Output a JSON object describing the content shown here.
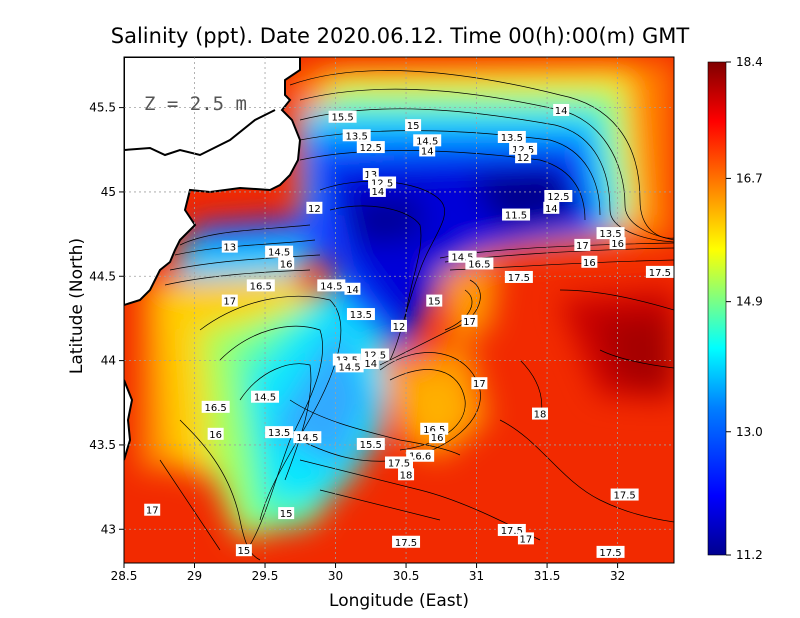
{
  "chart_data": {
    "type": "heatmap",
    "title": "Salinity (ppt). Date 2020.06.12. Time 00(h):00(m) GMT",
    "xlabel": "Longitude (East)",
    "ylabel": "Latitude (North)",
    "annotation": "Z = 2.5 m",
    "xlim": [
      28.5,
      32.4
    ],
    "ylim": [
      42.8,
      45.8
    ],
    "x_ticks": [
      "28.5",
      "29",
      "29.5",
      "30",
      "30.5",
      "31",
      "31.5",
      "32"
    ],
    "y_ticks": [
      "43",
      "43.5",
      "44",
      "44.5",
      "45",
      "45.5"
    ],
    "grid": true,
    "colorbar": {
      "range": [
        11.2,
        18.4
      ],
      "tick_labels": [
        "18.4",
        "16.7",
        "14.9",
        "13.0",
        "11.2"
      ],
      "colormap": [
        "#00008f",
        "#0000ff",
        "#0080ff",
        "#00ffff",
        "#80ff80",
        "#ffff00",
        "#ff8000",
        "#ff0000",
        "#800000"
      ]
    },
    "contour_labels": [
      {
        "text": "15.5",
        "lon": 30.05,
        "lat": 45.44
      },
      {
        "text": "15",
        "lon": 30.55,
        "lat": 45.39
      },
      {
        "text": "14",
        "lon": 31.6,
        "lat": 45.48
      },
      {
        "text": "13.5",
        "lon": 30.15,
        "lat": 45.33
      },
      {
        "text": "12.5",
        "lon": 30.25,
        "lat": 45.26
      },
      {
        "text": "14.5",
        "lon": 30.65,
        "lat": 45.3
      },
      {
        "text": "14",
        "lon": 30.65,
        "lat": 45.24
      },
      {
        "text": "13.5",
        "lon": 31.25,
        "lat": 45.32
      },
      {
        "text": "12.5",
        "lon": 31.33,
        "lat": 45.25
      },
      {
        "text": "12",
        "lon": 31.33,
        "lat": 45.2
      },
      {
        "text": "13",
        "lon": 30.25,
        "lat": 45.1
      },
      {
        "text": "12.5",
        "lon": 30.33,
        "lat": 45.05
      },
      {
        "text": "14",
        "lon": 30.3,
        "lat": 45.0
      },
      {
        "text": "12",
        "lon": 29.85,
        "lat": 44.9
      },
      {
        "text": "12.5",
        "lon": 31.58,
        "lat": 44.97
      },
      {
        "text": "14",
        "lon": 31.53,
        "lat": 44.9
      },
      {
        "text": "11.5",
        "lon": 31.28,
        "lat": 44.86
      },
      {
        "text": "13",
        "lon": 29.25,
        "lat": 44.67
      },
      {
        "text": "14.5",
        "lon": 29.6,
        "lat": 44.64
      },
      {
        "text": "16",
        "lon": 29.65,
        "lat": 44.57
      },
      {
        "text": "17",
        "lon": 31.75,
        "lat": 44.68
      },
      {
        "text": "13.5",
        "lon": 31.95,
        "lat": 44.75
      },
      {
        "text": "16",
        "lon": 32.0,
        "lat": 44.69
      },
      {
        "text": "14.5",
        "lon": 30.9,
        "lat": 44.61
      },
      {
        "text": "16.5",
        "lon": 31.02,
        "lat": 44.57
      },
      {
        "text": "16",
        "lon": 31.8,
        "lat": 44.58
      },
      {
        "text": "17.5",
        "lon": 32.3,
        "lat": 44.52
      },
      {
        "text": "17.5",
        "lon": 31.3,
        "lat": 44.49
      },
      {
        "text": "16.5",
        "lon": 29.47,
        "lat": 44.44
      },
      {
        "text": "14.5",
        "lon": 29.97,
        "lat": 44.44
      },
      {
        "text": "14",
        "lon": 30.12,
        "lat": 44.42
      },
      {
        "text": "17",
        "lon": 29.25,
        "lat": 44.35
      },
      {
        "text": "15",
        "lon": 30.7,
        "lat": 44.35
      },
      {
        "text": "13.5",
        "lon": 30.18,
        "lat": 44.27
      },
      {
        "text": "17",
        "lon": 30.95,
        "lat": 44.23
      },
      {
        "text": "12",
        "lon": 30.45,
        "lat": 44.2
      },
      {
        "text": "12.5",
        "lon": 30.28,
        "lat": 44.03
      },
      {
        "text": "13.5",
        "lon": 30.08,
        "lat": 44.0
      },
      {
        "text": "14",
        "lon": 30.25,
        "lat": 43.98
      },
      {
        "text": "14.5",
        "lon": 30.1,
        "lat": 43.96
      },
      {
        "text": "17",
        "lon": 31.02,
        "lat": 43.86
      },
      {
        "text": "16.5",
        "lon": 29.15,
        "lat": 43.72
      },
      {
        "text": "14.5",
        "lon": 29.5,
        "lat": 43.78
      },
      {
        "text": "18",
        "lon": 31.45,
        "lat": 43.68
      },
      {
        "text": "16",
        "lon": 29.15,
        "lat": 43.56
      },
      {
        "text": "13.5",
        "lon": 29.6,
        "lat": 43.57
      },
      {
        "text": "14.5",
        "lon": 29.8,
        "lat": 43.54
      },
      {
        "text": "16.5",
        "lon": 30.7,
        "lat": 43.59
      },
      {
        "text": "16",
        "lon": 30.72,
        "lat": 43.54
      },
      {
        "text": "15.5",
        "lon": 30.25,
        "lat": 43.5
      },
      {
        "text": "16.6",
        "lon": 30.6,
        "lat": 43.43
      },
      {
        "text": "17.5",
        "lon": 30.45,
        "lat": 43.39
      },
      {
        "text": "18",
        "lon": 30.5,
        "lat": 43.32
      },
      {
        "text": "17.5",
        "lon": 32.05,
        "lat": 43.2
      },
      {
        "text": "17",
        "lon": 28.7,
        "lat": 43.11
      },
      {
        "text": "15",
        "lon": 29.65,
        "lat": 43.09
      },
      {
        "text": "17.5",
        "lon": 31.25,
        "lat": 42.99
      },
      {
        "text": "17",
        "lon": 31.35,
        "lat": 42.94
      },
      {
        "text": "17.5",
        "lon": 30.5,
        "lat": 42.92
      },
      {
        "text": "15",
        "lon": 29.35,
        "lat": 42.87
      },
      {
        "text": "17.5",
        "lon": 31.95,
        "lat": 42.86
      }
    ]
  }
}
